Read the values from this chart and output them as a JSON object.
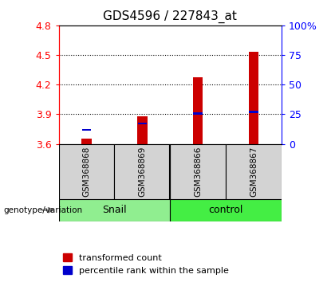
{
  "title": "GDS4596 / 227843_at",
  "samples": [
    "GSM368868",
    "GSM368869",
    "GSM368866",
    "GSM368867"
  ],
  "red_values": [
    3.65,
    3.875,
    4.275,
    4.535
  ],
  "blue_values": [
    3.73,
    3.795,
    3.898,
    3.915
  ],
  "ymin": 3.6,
  "ymax": 4.8,
  "yticks": [
    3.6,
    3.9,
    4.2,
    4.5,
    4.8
  ],
  "y2ticks_val": [
    0,
    25,
    50,
    75,
    100
  ],
  "y2ticks_label": [
    "0",
    "25",
    "50",
    "75",
    "100%"
  ],
  "red_color": "#cc0000",
  "blue_color": "#0000cc",
  "bar_width": 0.18,
  "baseline": 3.6,
  "title_fontsize": 11,
  "snail_color": "#90ee90",
  "control_color": "#44ee44",
  "sample_bg": "#d3d3d3",
  "legend_red": "transformed count",
  "legend_blue": "percentile rank within the sample"
}
